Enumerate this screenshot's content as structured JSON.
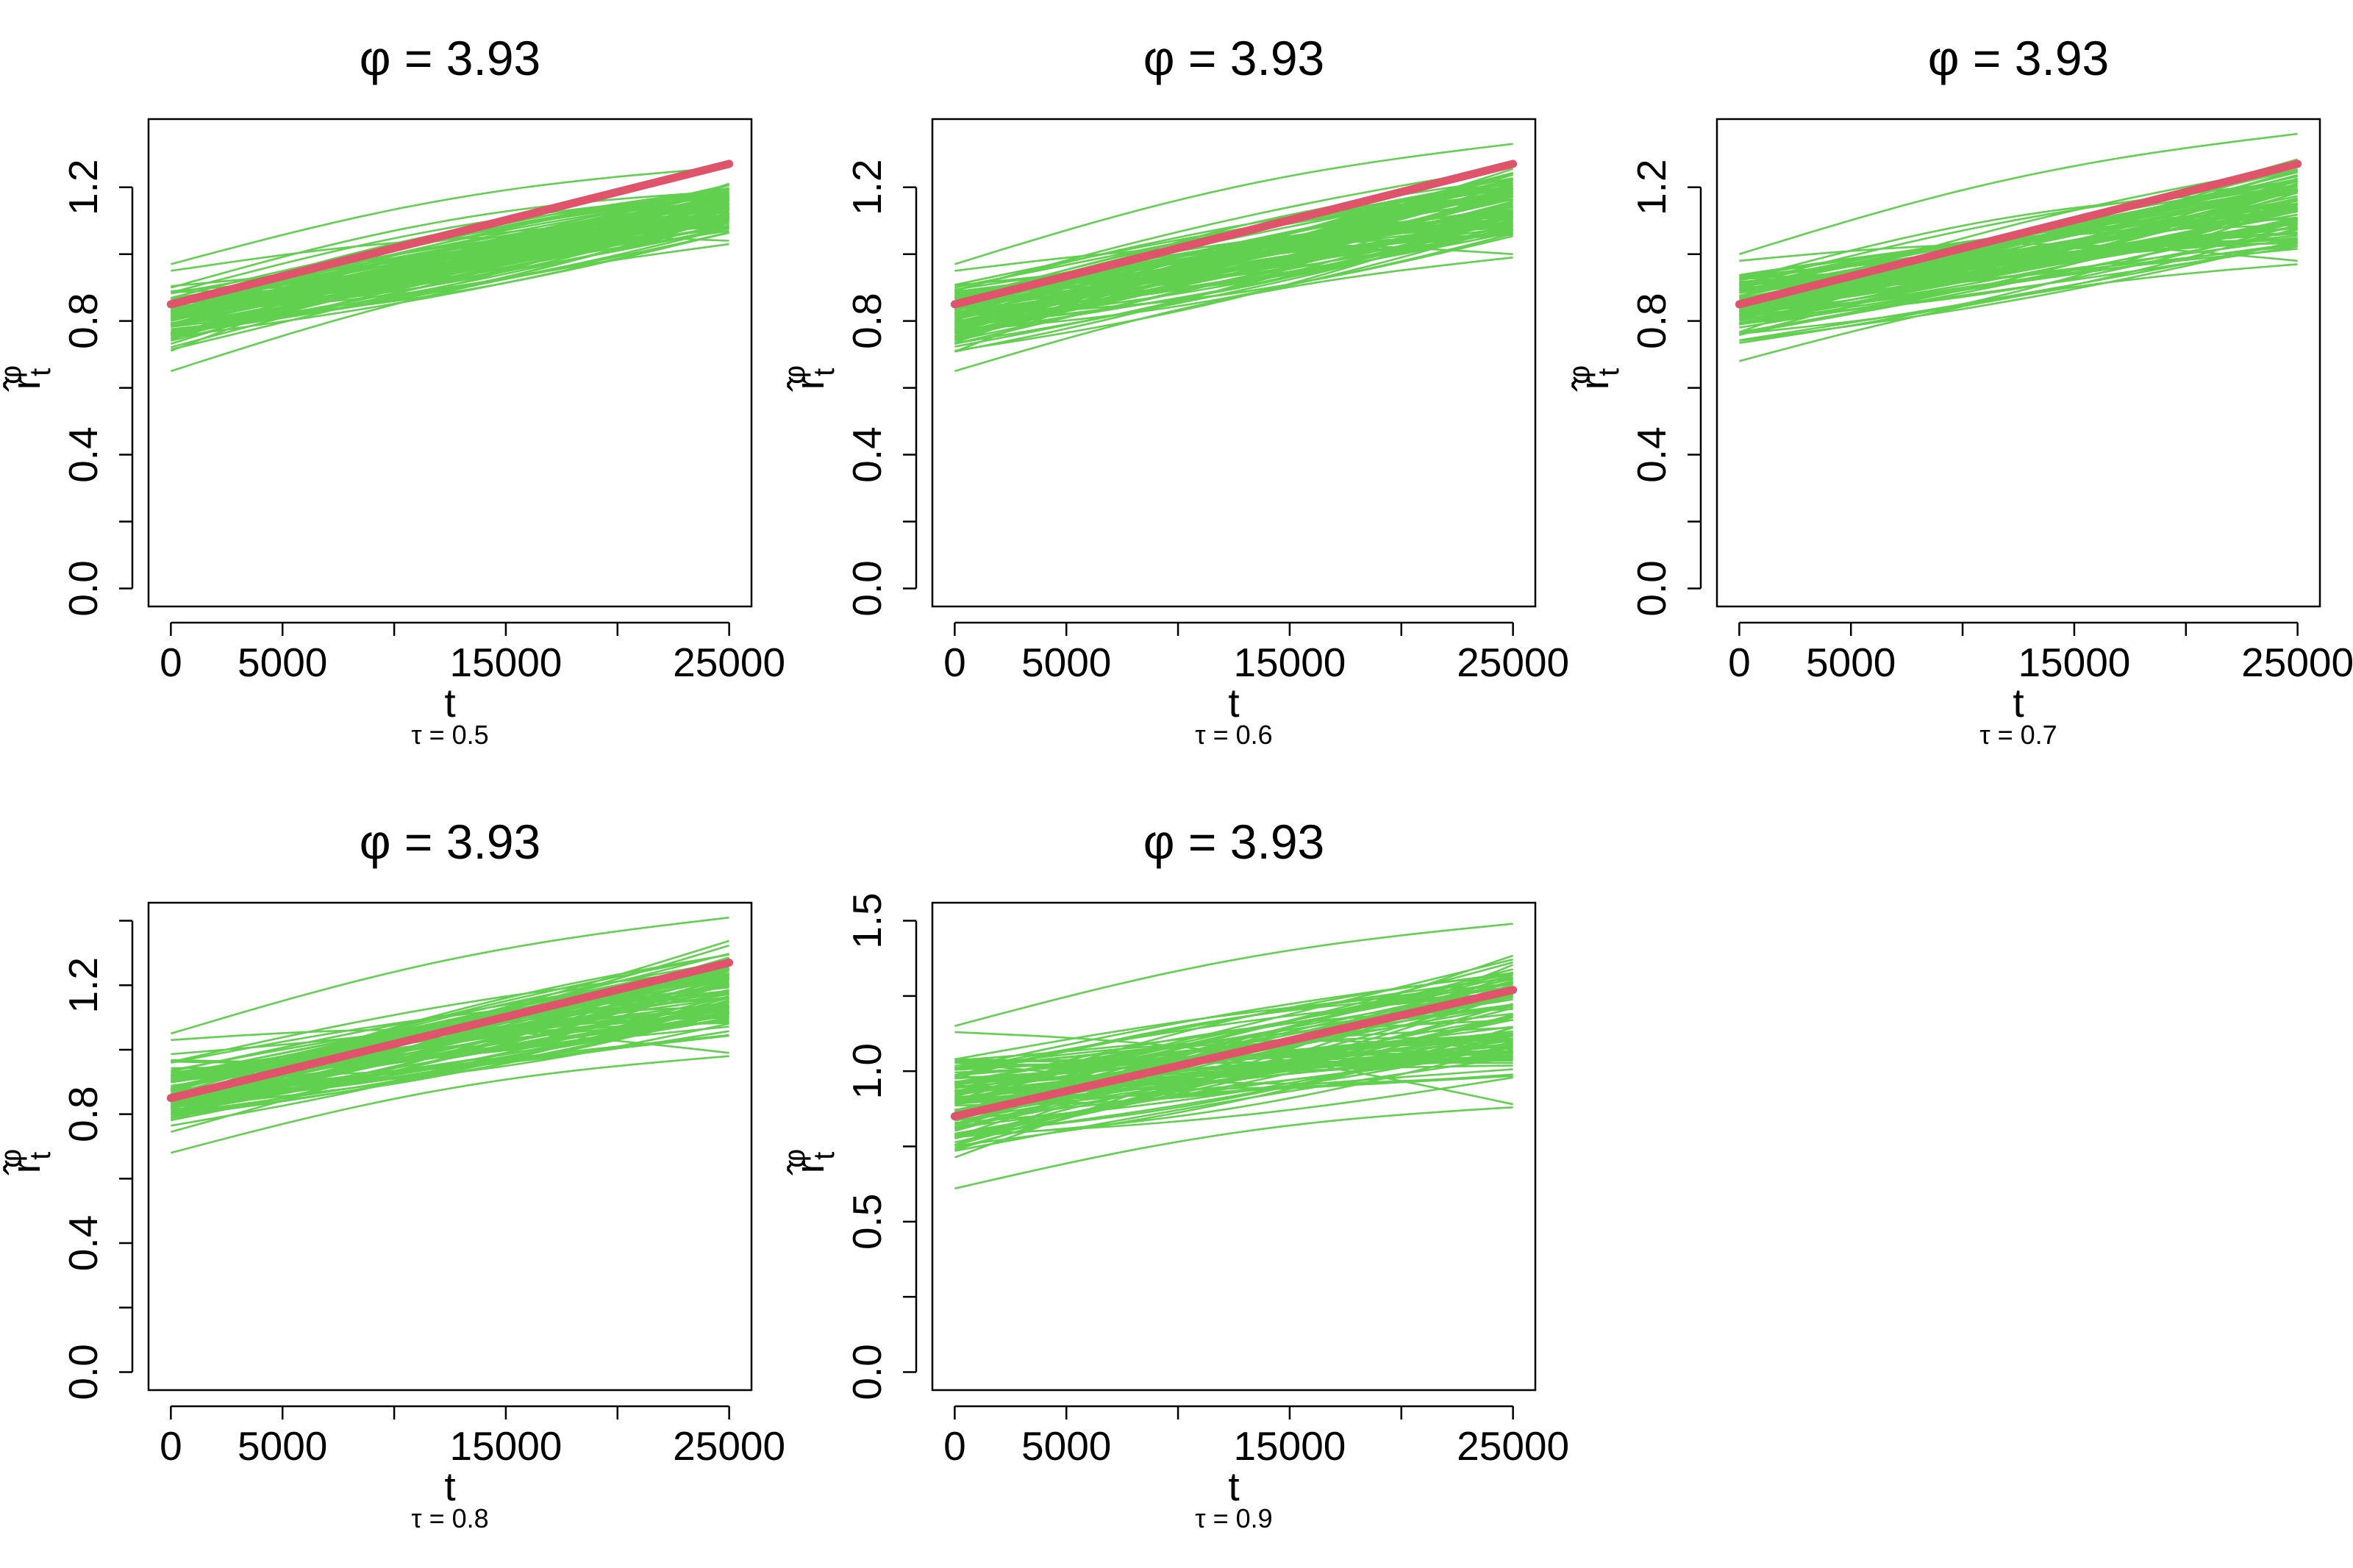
{
  "figure": {
    "panels": 5,
    "layout": "2 rows x 3 columns"
  },
  "colors": {
    "simulated": "#61d04f",
    "truth": "#df536b",
    "axis": "#000000"
  },
  "chart_data": [
    {
      "type": "line",
      "title": "φ = 3.93",
      "xlabel": "t",
      "ylabel": "r̂tφ",
      "subtitle": "τ = 0.5",
      "xlim": [
        0,
        25000
      ],
      "ylim": [
        0,
        1.35
      ],
      "xticks": [
        0,
        5000,
        10000,
        15000,
        20000,
        25000
      ],
      "xtick_labels": [
        "0",
        "5000",
        "",
        "15000",
        "",
        "25000"
      ],
      "yticks": [
        0,
        0.2,
        0.4,
        0.6,
        0.8,
        1.0,
        1.2
      ],
      "ytick_labels": [
        "0.0",
        "",
        "0.4",
        "",
        "0.8",
        "",
        "1.2"
      ],
      "truth": {
        "x": [
          0,
          25000
        ],
        "y": [
          0.85,
          1.27
        ]
      },
      "band": {
        "start": [
          0.65,
          0.97
        ],
        "end": [
          1.01,
          1.26
        ],
        "count": 100
      }
    },
    {
      "type": "line",
      "title": "φ = 3.93",
      "xlabel": "t",
      "ylabel": "r̂tφ",
      "subtitle": "τ = 0.6",
      "xlim": [
        0,
        25000
      ],
      "ylim": [
        0,
        1.35
      ],
      "xticks": [
        0,
        5000,
        10000,
        15000,
        20000,
        25000
      ],
      "xtick_labels": [
        "0",
        "5000",
        "",
        "15000",
        "",
        "25000"
      ],
      "yticks": [
        0,
        0.2,
        0.4,
        0.6,
        0.8,
        1.0,
        1.2
      ],
      "ytick_labels": [
        "0.0",
        "",
        "0.4",
        "",
        "0.8",
        "",
        "1.2"
      ],
      "truth": {
        "x": [
          0,
          25000
        ],
        "y": [
          0.85,
          1.27
        ]
      },
      "band": {
        "start": [
          0.65,
          0.97
        ],
        "end": [
          0.97,
          1.33
        ],
        "count": 100
      }
    },
    {
      "type": "line",
      "title": "φ = 3.93",
      "xlabel": "t",
      "ylabel": "r̂tφ",
      "subtitle": "τ = 0.7",
      "xlim": [
        0,
        25000
      ],
      "ylim": [
        0,
        1.35
      ],
      "xticks": [
        0,
        5000,
        10000,
        15000,
        20000,
        25000
      ],
      "xtick_labels": [
        "0",
        "5000",
        "",
        "15000",
        "",
        "25000"
      ],
      "yticks": [
        0,
        0.2,
        0.4,
        0.6,
        0.8,
        1.0,
        1.2
      ],
      "ytick_labels": [
        "0.0",
        "",
        "0.4",
        "",
        "0.8",
        "",
        "1.2"
      ],
      "truth": {
        "x": [
          0,
          25000
        ],
        "y": [
          0.85,
          1.27
        ]
      },
      "band": {
        "start": [
          0.68,
          1.0
        ],
        "end": [
          0.95,
          1.36
        ],
        "count": 100
      }
    },
    {
      "type": "line",
      "title": "φ = 3.93",
      "xlabel": "t",
      "ylabel": "r̂tφ",
      "subtitle": "τ = 0.8",
      "xlim": [
        0,
        25000
      ],
      "ylim": [
        0,
        1.4
      ],
      "xticks": [
        0,
        5000,
        10000,
        15000,
        20000,
        25000
      ],
      "xtick_labels": [
        "0",
        "5000",
        "",
        "15000",
        "",
        "25000"
      ],
      "yticks": [
        0,
        0.2,
        0.4,
        0.6,
        0.8,
        1.0,
        1.2,
        1.4
      ],
      "ytick_labels": [
        "0.0",
        "",
        "0.4",
        "",
        "0.8",
        "",
        "1.2",
        ""
      ],
      "truth": {
        "x": [
          0,
          25000
        ],
        "y": [
          0.85,
          1.27
        ]
      },
      "band": {
        "start": [
          0.68,
          1.05
        ],
        "end": [
          0.96,
          1.41
        ],
        "count": 100
      }
    },
    {
      "type": "line",
      "title": "φ = 3.93",
      "xlabel": "t",
      "ylabel": "r̂tφ",
      "subtitle": "τ = 0.9",
      "xlim": [
        0,
        25000
      ],
      "ylim": [
        0,
        1.5
      ],
      "xticks": [
        0,
        5000,
        10000,
        15000,
        20000,
        25000
      ],
      "xtick_labels": [
        "0",
        "5000",
        "",
        "15000",
        "",
        "25000"
      ],
      "yticks": [
        0,
        0.25,
        0.5,
        0.75,
        1.0,
        1.25,
        1.5
      ],
      "ytick_labels": [
        "0.0",
        "",
        "0.5",
        "",
        "1.0",
        "",
        "1.5"
      ],
      "truth": {
        "x": [
          0,
          25000
        ],
        "y": [
          0.85,
          1.27
        ]
      },
      "band": {
        "start": [
          0.61,
          1.15
        ],
        "end": [
          0.86,
          1.49
        ],
        "count": 100
      }
    }
  ]
}
